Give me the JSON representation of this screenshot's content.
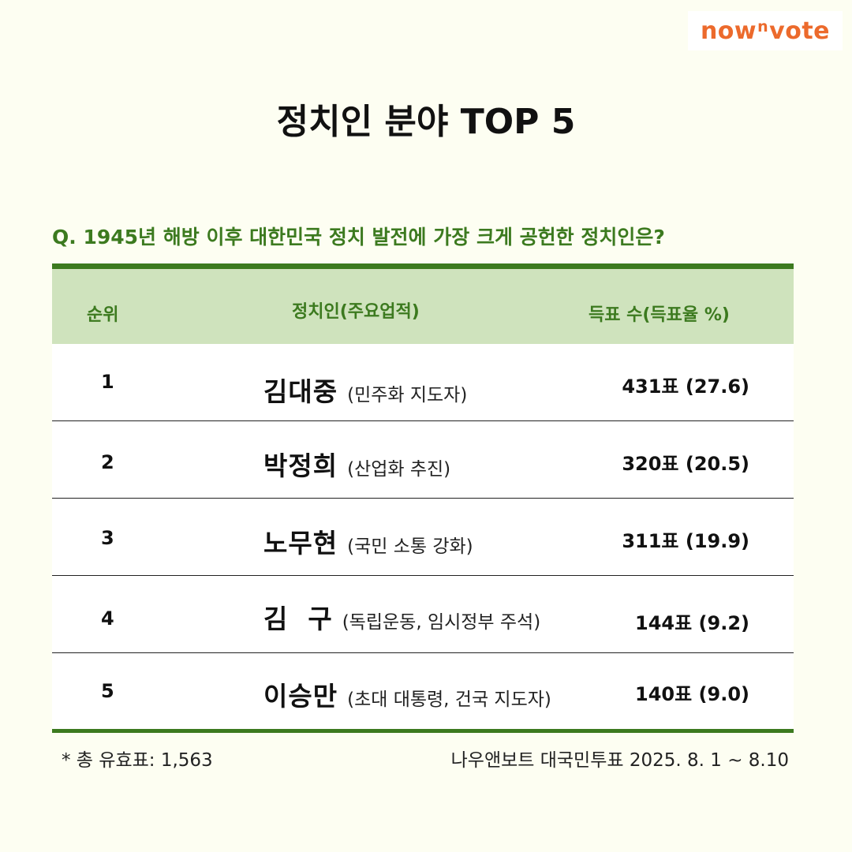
{
  "logo": {
    "pre": "now",
    "sup": "n",
    "post": "vote"
  },
  "title": "정치인 분야 TOP 5",
  "question": "Q. 1945년 해방 이후 대한민국 정치 발전에 가장 크게 공헌한 정치인은?",
  "table": {
    "headers": {
      "rank": "순위",
      "name": "정치인(주요업적)",
      "votes": "득표 수(득표율 %)"
    },
    "rows": [
      {
        "rank": "1",
        "name": "김대중",
        "deed": "(민주화 지도자)",
        "votes": "431표 (27.6)"
      },
      {
        "rank": "2",
        "name": "박정희",
        "deed": "(산업화 추진)",
        "votes": "320표 (20.5)"
      },
      {
        "rank": "3",
        "name": "노무현",
        "deed": "(국민 소통 강화)",
        "votes": "311표 (19.9)"
      },
      {
        "rank": "4",
        "name": "김  구",
        "deed": "(독립운동, 임시정부 주석)",
        "votes": "144표 (9.2)"
      },
      {
        "rank": "5",
        "name": "이승만",
        "deed": "(초대 대통령, 건국 지도자)",
        "votes": "140표 (9.0)"
      }
    ]
  },
  "footnote": "* 총 유효표: 1,563",
  "source": "나우앤보트 대국민투표 2025. 8. 1 ~  8.10",
  "colors": {
    "accent_green": "#3c7a1f",
    "header_bg": "#cfe3bd",
    "logo_orange": "#ec6a2c",
    "page_bg": "#fdfef2"
  }
}
